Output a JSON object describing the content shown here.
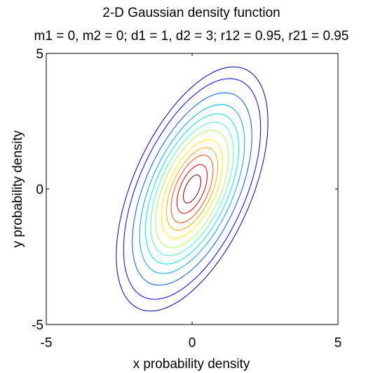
{
  "chart_data": {
    "type": "contour",
    "title": "2-D Gaussian density function",
    "subtitle": "m1 = 0, m2 = 0; d1 = 1, d2 = 3; r12 = 0.95, r21 = 0.95",
    "xlabel": "x probability density",
    "ylabel": "y probability density",
    "xlim": [
      -5,
      5
    ],
    "ylim": [
      -5,
      5
    ],
    "x_ticks": [
      "-5",
      "0",
      "5"
    ],
    "y_ticks": [
      "-5",
      "0",
      "5"
    ],
    "grid": false,
    "mean": [
      0,
      0
    ],
    "covariance": [
      [
        1,
        0.95
      ],
      [
        0.95,
        3
      ]
    ],
    "contour_levels": [
      {
        "scale": 2.6,
        "color": "#0000b8"
      },
      {
        "scale": 2.35,
        "color": "#0000ff"
      },
      {
        "scale": 2.05,
        "color": "#005aff"
      },
      {
        "scale": 1.8,
        "color": "#00a8ff"
      },
      {
        "scale": 1.6,
        "color": "#00e8f0"
      },
      {
        "scale": 1.42,
        "color": "#48ffb8"
      },
      {
        "scale": 1.25,
        "color": "#a8ff58"
      },
      {
        "scale": 1.05,
        "color": "#ffee00"
      },
      {
        "scale": 0.88,
        "color": "#ffa800"
      },
      {
        "scale": 0.72,
        "color": "#ff5000"
      },
      {
        "scale": 0.52,
        "color": "#e00000"
      },
      {
        "scale": 0.3,
        "color": "#800000"
      }
    ]
  }
}
